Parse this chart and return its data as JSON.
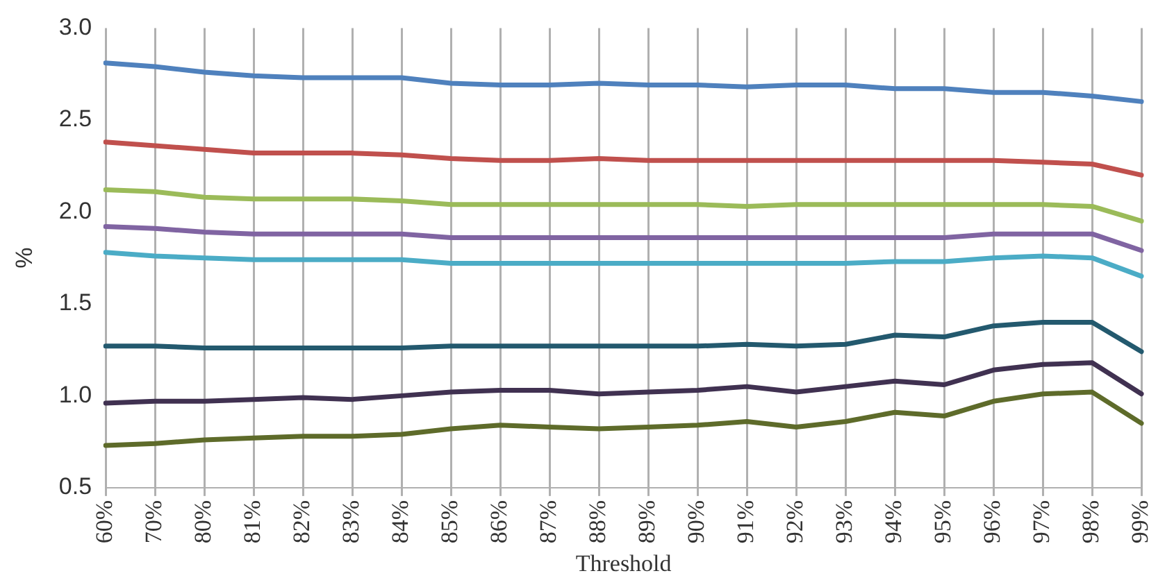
{
  "chart_data": {
    "type": "line",
    "xlabel": "Threshold",
    "ylabel": "%",
    "categories": [
      "60%",
      "70%",
      "80%",
      "81%",
      "82%",
      "83%",
      "84%",
      "85%",
      "86%",
      "87%",
      "88%",
      "89%",
      "90%",
      "91%",
      "92%",
      "93%",
      "94%",
      "95%",
      "96%",
      "97%",
      "98%",
      "99%"
    ],
    "ylim": [
      0.5,
      3.0
    ],
    "yticks": [
      {
        "value": 0.5,
        "label": "0.5"
      },
      {
        "value": 1.0,
        "label": "1.0"
      },
      {
        "value": 1.5,
        "label": "1.5"
      },
      {
        "value": 2.0,
        "label": "2.0"
      },
      {
        "value": 2.5,
        "label": "2.5"
      },
      {
        "value": 3.0,
        "label": "3.0"
      }
    ],
    "grid": "x",
    "legend": false,
    "marker": "none",
    "line_style": "solid",
    "series": [
      {
        "color": "#4f81bd",
        "values": [
          2.81,
          2.79,
          2.76,
          2.74,
          2.73,
          2.73,
          2.73,
          2.7,
          2.69,
          2.69,
          2.7,
          2.69,
          2.69,
          2.68,
          2.69,
          2.69,
          2.67,
          2.67,
          2.65,
          2.65,
          2.63,
          2.6
        ]
      },
      {
        "color": "#c0504d",
        "values": [
          2.38,
          2.36,
          2.34,
          2.32,
          2.32,
          2.32,
          2.31,
          2.29,
          2.28,
          2.28,
          2.29,
          2.28,
          2.28,
          2.28,
          2.28,
          2.28,
          2.28,
          2.28,
          2.28,
          2.27,
          2.26,
          2.2
        ]
      },
      {
        "color": "#9bbb59",
        "values": [
          2.12,
          2.11,
          2.08,
          2.07,
          2.07,
          2.07,
          2.06,
          2.04,
          2.04,
          2.04,
          2.04,
          2.04,
          2.04,
          2.03,
          2.04,
          2.04,
          2.04,
          2.04,
          2.04,
          2.04,
          2.03,
          1.95
        ]
      },
      {
        "color": "#8064a2",
        "values": [
          1.92,
          1.91,
          1.89,
          1.88,
          1.88,
          1.88,
          1.88,
          1.86,
          1.86,
          1.86,
          1.86,
          1.86,
          1.86,
          1.86,
          1.86,
          1.86,
          1.86,
          1.86,
          1.88,
          1.88,
          1.88,
          1.79
        ]
      },
      {
        "color": "#4bacc6",
        "values": [
          1.78,
          1.76,
          1.75,
          1.74,
          1.74,
          1.74,
          1.74,
          1.72,
          1.72,
          1.72,
          1.72,
          1.72,
          1.72,
          1.72,
          1.72,
          1.72,
          1.73,
          1.73,
          1.75,
          1.76,
          1.75,
          1.65
        ]
      },
      {
        "color": "#23596e",
        "values": [
          1.27,
          1.27,
          1.26,
          1.26,
          1.26,
          1.26,
          1.26,
          1.27,
          1.27,
          1.27,
          1.27,
          1.27,
          1.27,
          1.28,
          1.27,
          1.28,
          1.33,
          1.32,
          1.38,
          1.4,
          1.4,
          1.24
        ]
      },
      {
        "color": "#403151",
        "values": [
          0.96,
          0.97,
          0.97,
          0.98,
          0.99,
          0.98,
          1.0,
          1.02,
          1.03,
          1.03,
          1.01,
          1.02,
          1.03,
          1.05,
          1.02,
          1.05,
          1.08,
          1.06,
          1.14,
          1.17,
          1.18,
          1.01
        ]
      },
      {
        "color": "#5e6b2a",
        "values": [
          0.73,
          0.74,
          0.76,
          0.77,
          0.78,
          0.78,
          0.79,
          0.82,
          0.84,
          0.83,
          0.82,
          0.83,
          0.84,
          0.86,
          0.83,
          0.86,
          0.91,
          0.89,
          0.97,
          1.01,
          1.02,
          0.85
        ]
      }
    ]
  }
}
